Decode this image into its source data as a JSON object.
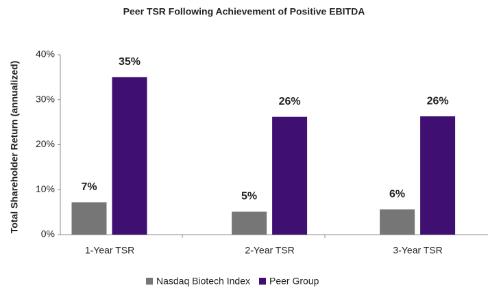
{
  "chart_data": {
    "type": "bar",
    "title": "Peer TSR Following Achievement of Positive EBITDA",
    "y_label": "Total Shareholder Return (annualized)",
    "categories": [
      "1-Year TSR",
      "2-Year TSR",
      "3-Year TSR"
    ],
    "series": [
      {
        "name": "Nasdaq Biotech Index",
        "color": "#767676",
        "values": [
          7.2,
          5.1,
          5.6
        ],
        "value_labels": [
          "7%",
          "5%",
          "6%"
        ]
      },
      {
        "name": "Peer Group",
        "color": "#3f0f72",
        "values": [
          35,
          26.2,
          26.3
        ],
        "value_labels": [
          "35%",
          "26%",
          "26%"
        ]
      }
    ],
    "ylim": [
      0,
      40
    ],
    "yticks": [
      {
        "value": 0,
        "label": "0%"
      },
      {
        "value": 10,
        "label": "10%"
      },
      {
        "value": 20,
        "label": "20%"
      },
      {
        "value": 30,
        "label": "30%"
      },
      {
        "value": 40,
        "label": "40%"
      }
    ],
    "legend": "bottom"
  }
}
